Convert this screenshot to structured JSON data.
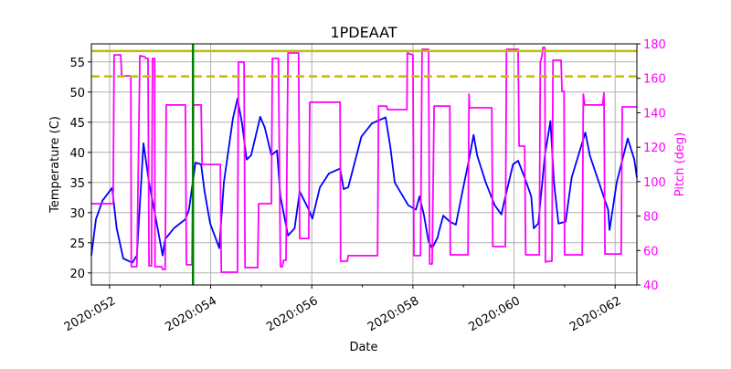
{
  "chart_data": {
    "type": "line",
    "title": "1PDEAAT",
    "xlabel": "Date",
    "ylabel": "Temperature (C)",
    "y2label": "Pitch (deg)",
    "xlim": [
      51.64,
      62.43
    ],
    "ylim": [
      18,
      58
    ],
    "y2lim": [
      40,
      180
    ],
    "grid": true,
    "x_ticks": [
      52,
      54,
      56,
      58,
      60,
      62
    ],
    "x_tick_labels": [
      "2020:052",
      "2020:054",
      "2020:056",
      "2020:058",
      "2020:060",
      "2020:062"
    ],
    "x_minor_ticks": [
      53,
      55,
      57,
      59,
      61
    ],
    "y_ticks": [
      20,
      25,
      30,
      35,
      40,
      45,
      50,
      55
    ],
    "y_tick_labels": [
      "20",
      "25",
      "30",
      "35",
      "40",
      "45",
      "50",
      "55"
    ],
    "y2_ticks": [
      40,
      60,
      80,
      100,
      120,
      140,
      160,
      180
    ],
    "y2_tick_labels": [
      "40",
      "60",
      "80",
      "100",
      "120",
      "140",
      "160",
      "180"
    ],
    "colors": {
      "temperature": "#0000ff",
      "pitch": "#ff00ff",
      "limit": "#bfbf00",
      "marker": "#008000",
      "y2axis": "#ff00ff"
    },
    "hlines": [
      {
        "y": 56.8,
        "style": "solid"
      },
      {
        "y": 52.6,
        "style": "dashed"
      }
    ],
    "vlines": [
      {
        "x": 53.65
      }
    ],
    "series": [
      {
        "axis": "left",
        "points": [
          [
            51.64,
            22.9
          ],
          [
            51.73,
            28.9
          ],
          [
            51.86,
            32.0
          ],
          [
            52.05,
            34.1
          ],
          [
            52.14,
            27.4
          ],
          [
            52.27,
            22.4
          ],
          [
            52.45,
            21.7
          ],
          [
            52.54,
            22.9
          ],
          [
            52.67,
            41.5
          ],
          [
            52.78,
            35.0
          ],
          [
            52.9,
            29.7
          ],
          [
            53.05,
            22.9
          ],
          [
            53.1,
            25.6
          ],
          [
            53.27,
            27.4
          ],
          [
            53.5,
            28.9
          ],
          [
            53.57,
            30.5
          ],
          [
            53.7,
            38.3
          ],
          [
            53.81,
            38.0
          ],
          [
            53.88,
            33.5
          ],
          [
            53.99,
            28.2
          ],
          [
            54.17,
            24.1
          ],
          [
            54.26,
            35.0
          ],
          [
            54.44,
            45.6
          ],
          [
            54.53,
            48.9
          ],
          [
            54.62,
            44.8
          ],
          [
            54.71,
            38.8
          ],
          [
            54.8,
            39.5
          ],
          [
            54.98,
            45.9
          ],
          [
            55.07,
            44.1
          ],
          [
            55.2,
            39.5
          ],
          [
            55.31,
            40.3
          ],
          [
            55.38,
            32.7
          ],
          [
            55.53,
            26.2
          ],
          [
            55.66,
            27.4
          ],
          [
            55.76,
            33.5
          ],
          [
            55.94,
            30.5
          ],
          [
            56.01,
            29.0
          ],
          [
            56.16,
            34.2
          ],
          [
            56.34,
            36.5
          ],
          [
            56.56,
            37.3
          ],
          [
            56.63,
            33.9
          ],
          [
            56.72,
            34.2
          ],
          [
            56.98,
            42.6
          ],
          [
            57.19,
            44.8
          ],
          [
            57.46,
            45.8
          ],
          [
            57.55,
            41.1
          ],
          [
            57.64,
            35.0
          ],
          [
            57.91,
            31.2
          ],
          [
            58.06,
            30.5
          ],
          [
            58.13,
            32.7
          ],
          [
            58.22,
            29.5
          ],
          [
            58.31,
            25.2
          ],
          [
            58.38,
            24.1
          ],
          [
            58.49,
            25.9
          ],
          [
            58.51,
            26.7
          ],
          [
            58.6,
            29.5
          ],
          [
            58.73,
            28.5
          ],
          [
            58.85,
            28.0
          ],
          [
            58.98,
            33.5
          ],
          [
            59.11,
            38.8
          ],
          [
            59.2,
            42.9
          ],
          [
            59.27,
            39.5
          ],
          [
            59.44,
            35.0
          ],
          [
            59.62,
            31.2
          ],
          [
            59.75,
            29.7
          ],
          [
            59.8,
            31.6
          ],
          [
            59.98,
            38.0
          ],
          [
            60.08,
            38.6
          ],
          [
            60.21,
            35.8
          ],
          [
            60.34,
            32.7
          ],
          [
            60.39,
            27.4
          ],
          [
            60.48,
            28.2
          ],
          [
            60.61,
            39.5
          ],
          [
            60.72,
            45.2
          ],
          [
            60.79,
            35.0
          ],
          [
            60.88,
            28.2
          ],
          [
            61.02,
            28.5
          ],
          [
            61.14,
            35.8
          ],
          [
            61.41,
            43.3
          ],
          [
            61.5,
            39.5
          ],
          [
            61.68,
            35.0
          ],
          [
            61.86,
            30.5
          ],
          [
            61.89,
            27.1
          ],
          [
            62.03,
            35.0
          ],
          [
            62.25,
            42.3
          ],
          [
            62.38,
            38.8
          ],
          [
            62.43,
            35.8
          ]
        ]
      },
      {
        "axis": "right",
        "points": [
          [
            51.64,
            87.2
          ],
          [
            52.07,
            87.2
          ],
          [
            52.09,
            173.6
          ],
          [
            52.22,
            173.6
          ],
          [
            52.24,
            161.4
          ],
          [
            52.42,
            161.4
          ],
          [
            52.43,
            50.6
          ],
          [
            52.54,
            50.6
          ],
          [
            52.6,
            173.1
          ],
          [
            52.69,
            172.6
          ],
          [
            52.72,
            171.5
          ],
          [
            52.76,
            171.5
          ],
          [
            52.78,
            51.1
          ],
          [
            52.83,
            51.1
          ],
          [
            52.85,
            171.5
          ],
          [
            52.89,
            171.5
          ],
          [
            52.9,
            50.6
          ],
          [
            53.03,
            50.6
          ],
          [
            53.05,
            49.0
          ],
          [
            53.1,
            49.0
          ],
          [
            53.12,
            144.5
          ],
          [
            53.5,
            144.5
          ],
          [
            53.52,
            51.7
          ],
          [
            53.63,
            51.7
          ],
          [
            53.66,
            144.5
          ],
          [
            53.81,
            144.5
          ],
          [
            53.83,
            110.0
          ],
          [
            54.19,
            110.0
          ],
          [
            54.21,
            47.4
          ],
          [
            54.53,
            47.4
          ],
          [
            54.55,
            169.4
          ],
          [
            54.66,
            169.4
          ],
          [
            54.68,
            50.1
          ],
          [
            54.93,
            50.1
          ],
          [
            54.95,
            87.2
          ],
          [
            55.2,
            87.2
          ],
          [
            55.22,
            171.5
          ],
          [
            55.34,
            171.5
          ],
          [
            55.38,
            50.6
          ],
          [
            55.42,
            50.6
          ],
          [
            55.44,
            54.3
          ],
          [
            55.49,
            54.3
          ],
          [
            55.53,
            174.7
          ],
          [
            55.74,
            174.7
          ],
          [
            55.76,
            67.0
          ],
          [
            55.94,
            67.0
          ],
          [
            55.96,
            146.1
          ],
          [
            56.56,
            146.1
          ],
          [
            56.57,
            53.8
          ],
          [
            56.7,
            53.8
          ],
          [
            56.72,
            57.0
          ],
          [
            57.3,
            57.0
          ],
          [
            57.32,
            143.9
          ],
          [
            57.48,
            143.9
          ],
          [
            57.5,
            141.8
          ],
          [
            57.88,
            141.8
          ],
          [
            57.89,
            174.7
          ],
          [
            58.0,
            173.6
          ],
          [
            58.02,
            57.0
          ],
          [
            58.15,
            57.0
          ],
          [
            58.18,
            176.8
          ],
          [
            58.31,
            176.8
          ],
          [
            58.33,
            52.2
          ],
          [
            58.38,
            52.2
          ],
          [
            58.42,
            143.9
          ],
          [
            58.73,
            143.9
          ],
          [
            58.74,
            57.5
          ],
          [
            59.09,
            57.5
          ],
          [
            59.11,
            150.8
          ],
          [
            59.12,
            142.9
          ],
          [
            59.56,
            142.9
          ],
          [
            59.58,
            62.3
          ],
          [
            59.83,
            62.3
          ],
          [
            59.85,
            176.8
          ],
          [
            60.08,
            176.8
          ],
          [
            60.1,
            120.6
          ],
          [
            60.21,
            120.6
          ],
          [
            60.23,
            57.5
          ],
          [
            60.5,
            57.5
          ],
          [
            60.52,
            169.4
          ],
          [
            60.55,
            172.6
          ],
          [
            60.57,
            177.9
          ],
          [
            60.61,
            177.9
          ],
          [
            60.62,
            53.3
          ],
          [
            60.68,
            53.8
          ],
          [
            60.75,
            53.8
          ],
          [
            60.77,
            170.5
          ],
          [
            60.93,
            170.5
          ],
          [
            60.95,
            152.4
          ],
          [
            60.99,
            152.4
          ],
          [
            61.0,
            57.5
          ],
          [
            61.35,
            57.5
          ],
          [
            61.37,
            150.8
          ],
          [
            61.4,
            144.5
          ],
          [
            61.75,
            144.5
          ],
          [
            61.78,
            151.4
          ],
          [
            61.8,
            58.0
          ],
          [
            62.12,
            58.0
          ],
          [
            62.14,
            143.4
          ],
          [
            62.43,
            143.4
          ]
        ]
      }
    ]
  }
}
